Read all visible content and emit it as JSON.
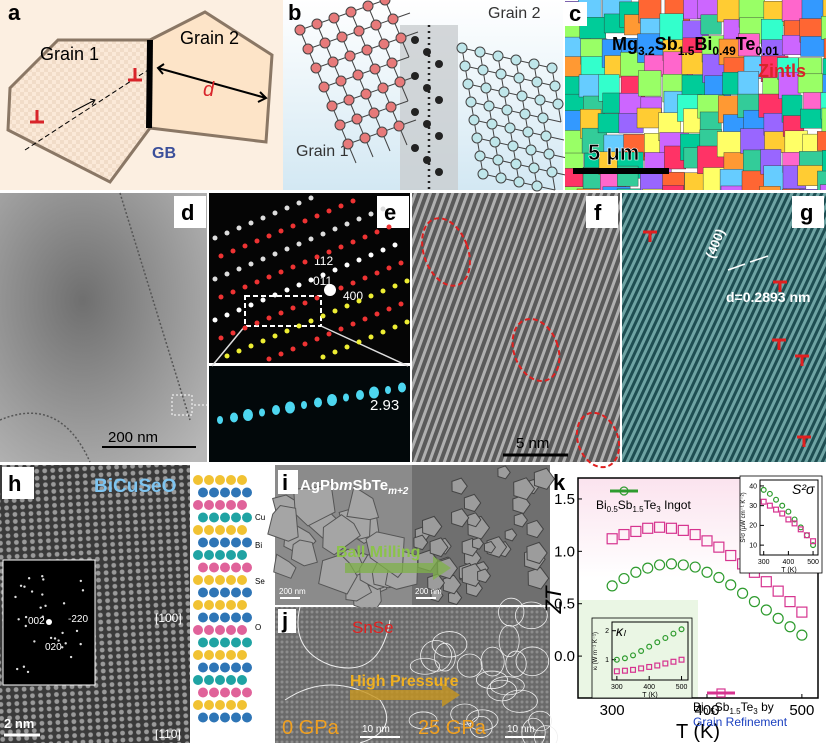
{
  "panels": {
    "a": {
      "label": "a",
      "grain_1": "Grain 1",
      "grain_2": "Grain 2",
      "gb": "GB",
      "d": "d"
    },
    "b": {
      "label": "b",
      "grain_2": "Grain 2",
      "grain_1": "Grain 1"
    },
    "c": {
      "label": "c",
      "formula": [
        "Mg",
        "3.2",
        "Sb",
        "1.5",
        "Bi",
        "0.49",
        "Te",
        "0.01"
      ],
      "note": "Zintls",
      "scale_bar": "5 μm"
    },
    "d": {
      "label": "d",
      "scale_bar": "200 nm"
    },
    "e": {
      "label": "e",
      "indices": [
        "112",
        "011",
        "400"
      ],
      "spacing": "2.93"
    },
    "f": {
      "label": "f",
      "scale_bar": "5 nm"
    },
    "g": {
      "label": "g",
      "plane": "(400)",
      "d_spacing": "d=0.2893 nm"
    },
    "h": {
      "label": "h",
      "material": "BiCuSeO",
      "spots": [
        "002",
        "-220",
        "020"
      ],
      "directions": [
        "[100]",
        "[110]"
      ],
      "scale_bar": "2 nm",
      "atoms": [
        "Cu",
        "Bi",
        "Se",
        "O"
      ]
    },
    "i": {
      "label": "i",
      "material": [
        "AgPb",
        "m",
        "SbTe",
        "m+2"
      ],
      "process": "Ball Milling",
      "scale_bars": [
        "200 nm",
        "200 nm"
      ]
    },
    "j": {
      "label": "j",
      "material": "SnSe",
      "process": "High Pressure",
      "pressures": [
        "0 GPa",
        "25 GPa"
      ],
      "scale_bars": [
        "10 nm",
        "10 nm"
      ]
    },
    "k": {
      "label": "k",
      "chart_data": {
        "type": "scatter",
        "ylabel": "ZT",
        "xlabel": "T (K)",
        "xlim": [
          264,
          517
        ],
        "xticks": [
          300,
          400,
          500
        ],
        "ylim": [
          -0.4,
          1.7
        ],
        "yticks": [
          {
            "value": 0,
            "label": "0.0"
          },
          0.5,
          {
            "value": 1,
            "label": "1.0"
          },
          1.5
        ],
        "x": [
          300,
          312.5,
          325,
          337.5,
          350,
          362.5,
          375,
          387.5,
          400,
          412.5,
          425,
          437.5,
          450,
          462.5,
          475,
          487.5,
          500
        ],
        "series": [
          {
            "name": [
              "Bi",
              "0.5",
              "Sb",
              "1.5",
              "Te",
              "3",
              " Ingot"
            ],
            "color": "#2e9b2e",
            "marker": "circle",
            "values": [
              0.67,
              0.74,
              0.8,
              0.84,
              0.87,
              0.88,
              0.87,
              0.85,
              0.8,
              0.75,
              0.68,
              0.6,
              0.52,
              0.44,
              0.36,
              0.28,
              0.2
            ]
          },
          {
            "name": [
              "Bi",
              "0.5",
              "Sb",
              "1.5",
              "Te",
              "3",
              " by"
            ],
            "name_line2": "Grain Refinement",
            "color": "#d6338f",
            "marker": "square",
            "values": [
              1.12,
              1.16,
              1.19,
              1.22,
              1.23,
              1.22,
              1.2,
              1.16,
              1.1,
              1.04,
              0.96,
              0.88,
              0.8,
              0.71,
              0.62,
              0.52,
              0.42
            ]
          }
        ],
        "insets": [
          {
            "title": "S²σ",
            "ylabel": "S²σ (μW cm⁻¹ K⁻²)",
            "xlabel": "T (K)",
            "xlim": [
              285,
              520
            ],
            "xticks": [
              300,
              400,
              500
            ],
            "ylim": [
              5,
              43
            ],
            "yticks": [
              10,
              20,
              30,
              40
            ],
            "x": [
              300,
              325,
              350,
              375,
              400,
              425,
              450,
              475,
              500
            ],
            "series": [
              {
                "color": "#2e9b2e",
                "marker": "circle",
                "values": [
                  38,
                  36,
                  33,
                  30,
                  27,
                  23,
                  19,
                  15,
                  10
                ]
              },
              {
                "color": "#d6338f",
                "marker": "square",
                "values": [
                  32,
                  30,
                  28,
                  26,
                  23,
                  21,
                  18,
                  15,
                  12
                ]
              }
            ]
          },
          {
            "title": "κₗ",
            "ylabel": "κₗ (W m⁻¹ K⁻¹)",
            "xlabel": "T (K)",
            "xlim": [
              285,
              520
            ],
            "xticks": [
              300,
              400,
              500
            ],
            "ylim": [
              0.3,
              2.3
            ],
            "yticks": [
              1,
              2
            ],
            "x": [
              300,
              325,
              350,
              375,
              400,
              425,
              450,
              475,
              500
            ],
            "series": [
              {
                "color": "#2e9b2e",
                "marker": "circle",
                "values": [
                  1,
                  1.05,
                  1.15,
                  1.3,
                  1.45,
                  1.6,
                  1.75,
                  1.9,
                  2.05
                ]
              },
              {
                "color": "#d6338f",
                "marker": "square",
                "values": [
                  0.6,
                  0.62,
                  0.65,
                  0.7,
                  0.75,
                  0.8,
                  0.87,
                  0.93,
                  1
                ]
              }
            ]
          }
        ]
      }
    }
  }
}
